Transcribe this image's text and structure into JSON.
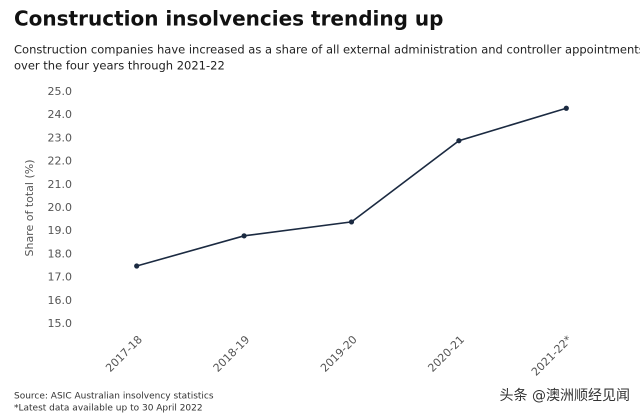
{
  "chart_data": {
    "type": "line",
    "title": "Construction insolvencies trending up",
    "subtitle": [
      "Construction companies have increased as a share of all external administration and controller appointments",
      "over the four years through 2021-22"
    ],
    "y_label": "Share of total (%)",
    "categories": [
      "2017-18",
      "2018-19",
      "2019-20",
      "2020-21",
      "2021-22*"
    ],
    "series": [
      {
        "name": "Share of total",
        "color": "#1b2a41",
        "values": [
          17.5,
          18.8,
          19.4,
          22.9,
          24.3
        ]
      }
    ],
    "ylim": [
      15,
      25
    ],
    "yticks": [
      {
        "value": 15,
        "label": "15.0"
      },
      {
        "value": 16,
        "label": "16.0"
      },
      {
        "value": 17,
        "label": "17.0"
      },
      {
        "value": 18,
        "label": "18.0"
      },
      {
        "value": 19,
        "label": "19.0"
      },
      {
        "value": 20,
        "label": "20.0"
      },
      {
        "value": 21,
        "label": "21.0"
      },
      {
        "value": 22,
        "label": "22.0"
      },
      {
        "value": 23,
        "label": "23.0"
      },
      {
        "value": 24,
        "label": "24.0"
      },
      {
        "value": 25,
        "label": "25.0"
      }
    ],
    "grid": false,
    "notes": [
      "Source: ASIC Australian insolvency statistics",
      "*Latest data available up to 30 April 2022"
    ],
    "watermark": "头条 @澳洲顺经见闻"
  }
}
